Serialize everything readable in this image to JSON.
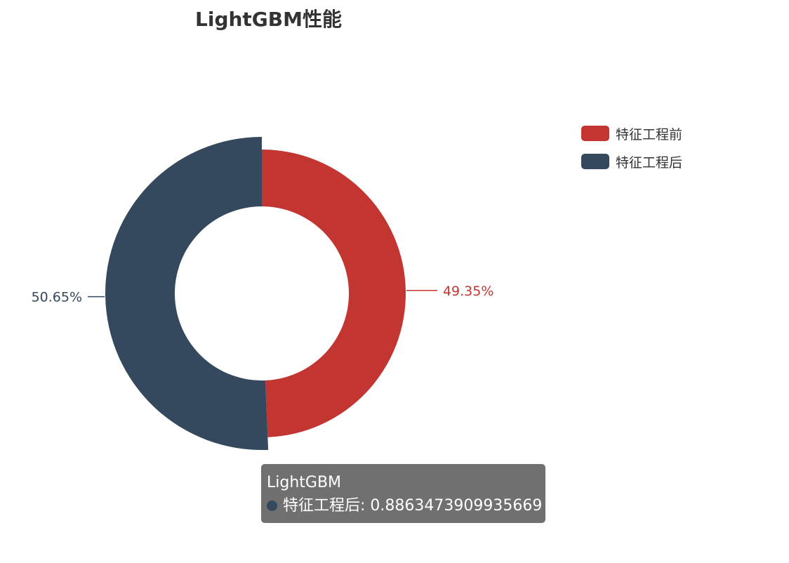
{
  "title": "LightGBM性能",
  "colors": {
    "before": "#c23531",
    "after": "#34495e"
  },
  "chart_data": {
    "type": "pie",
    "variant": "donut",
    "title": "LightGBM性能",
    "legend_position": "top-right",
    "slices": [
      {
        "name": "特征工程前",
        "percent_label": "49.35%",
        "color": "#c23531"
      },
      {
        "name": "特征工程后",
        "value": 0.8863473909935669,
        "percent_label": "50.65%",
        "color": "#34495e"
      }
    ]
  },
  "legend": [
    {
      "label": "特征工程前",
      "color": "#c23531"
    },
    {
      "label": "特征工程后",
      "color": "#34495e"
    }
  ],
  "tooltip": {
    "title": "LightGBM",
    "series_name": "特征工程后",
    "value": "0.8863473909935669",
    "color": "#34495e"
  }
}
